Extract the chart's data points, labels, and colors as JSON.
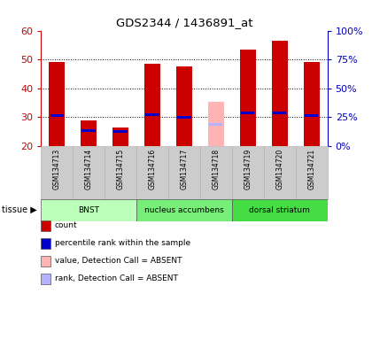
{
  "title": "GDS2344 / 1436891_at",
  "samples": [
    "GSM134713",
    "GSM134714",
    "GSM134715",
    "GSM134716",
    "GSM134717",
    "GSM134718",
    "GSM134719",
    "GSM134720",
    "GSM134721"
  ],
  "red_bar_values": [
    49.0,
    29.0,
    26.5,
    48.5,
    47.5,
    null,
    53.5,
    56.5,
    49.0
  ],
  "blue_marker_values": [
    30.5,
    25.5,
    25.0,
    31.0,
    30.0,
    null,
    31.5,
    31.5,
    30.5
  ],
  "pink_bar_values": [
    null,
    null,
    null,
    null,
    null,
    35.5,
    null,
    null,
    null
  ],
  "light_blue_marker_values": [
    null,
    null,
    null,
    null,
    null,
    27.5,
    null,
    null,
    null
  ],
  "ylim_left": [
    20,
    60
  ],
  "ylim_right": [
    0,
    100
  ],
  "yticks_left": [
    20,
    30,
    40,
    50,
    60
  ],
  "ytick_labels_right": [
    "0%",
    "25%",
    "50%",
    "75%",
    "100%"
  ],
  "tissue_groups": [
    {
      "label": "BNST",
      "start": 0,
      "end": 3
    },
    {
      "label": "nucleus accumbens",
      "start": 3,
      "end": 6
    },
    {
      "label": "dorsal striatum",
      "start": 6,
      "end": 9
    }
  ],
  "tissue_colors": [
    "#bbffbb",
    "#77ee77",
    "#44dd44"
  ],
  "legend_items": [
    {
      "color": "#cc0000",
      "label": "count"
    },
    {
      "color": "#0000cc",
      "label": "percentile rank within the sample"
    },
    {
      "color": "#ffb3b3",
      "label": "value, Detection Call = ABSENT"
    },
    {
      "color": "#b3b3ff",
      "label": "rank, Detection Call = ABSENT"
    }
  ],
  "bar_width": 0.5,
  "red_color": "#cc0000",
  "blue_color": "#0000cc",
  "pink_color": "#ffb3b3",
  "light_blue_color": "#b3b3ff",
  "bg_color": "#ffffff",
  "left_axis_color": "#cc0000",
  "right_axis_color": "#0000bb",
  "sample_box_color": "#cccccc",
  "grid_ticks": [
    30,
    40,
    50
  ]
}
